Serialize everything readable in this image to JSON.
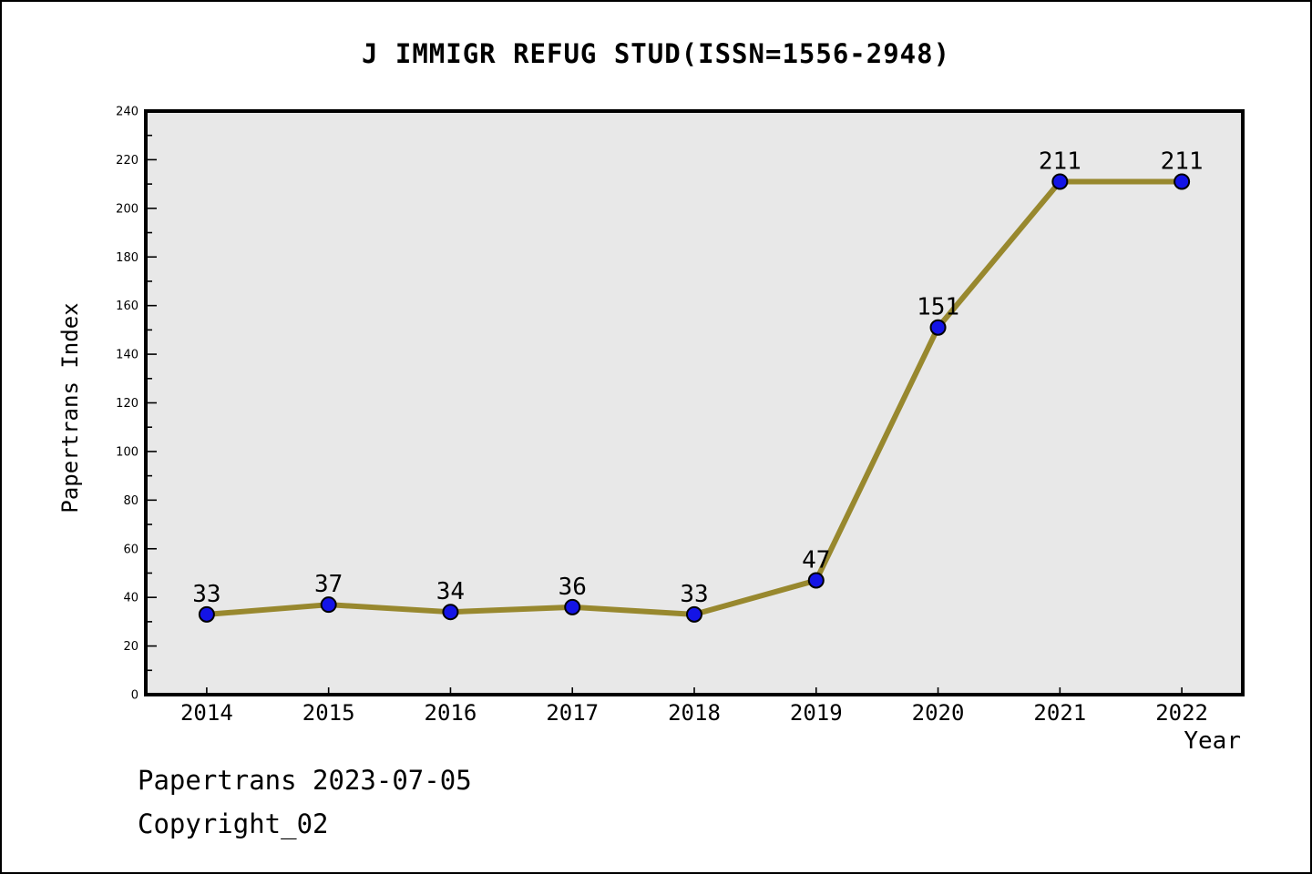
{
  "chart_data": {
    "type": "line",
    "title": "J IMMIGR REFUG STUD(ISSN=1556-2948)",
    "categories": [
      "2014",
      "2015",
      "2016",
      "2017",
      "2018",
      "2019",
      "2020",
      "2021",
      "2022"
    ],
    "values": [
      33,
      37,
      34,
      36,
      33,
      47,
      151,
      211,
      211
    ],
    "series_name": "Papertrans Index",
    "xlabel": "Year",
    "ylabel": "Papertrans Index",
    "ylim": [
      0,
      240
    ],
    "ytick_step": 20,
    "ytick_minor_step": 10,
    "grid": false,
    "legend_position": "none",
    "data_labels_shown": true,
    "colors": {
      "line": "#98882e",
      "marker_fill": "#1414e6",
      "marker_edge": "#000000",
      "plot_background": "#e8e8e8",
      "frame": "#000000",
      "text": "#000000",
      "page_background": "#ffffff"
    }
  },
  "footer": {
    "line1": "Papertrans 2023-07-05",
    "line2": "Copyright_02"
  }
}
